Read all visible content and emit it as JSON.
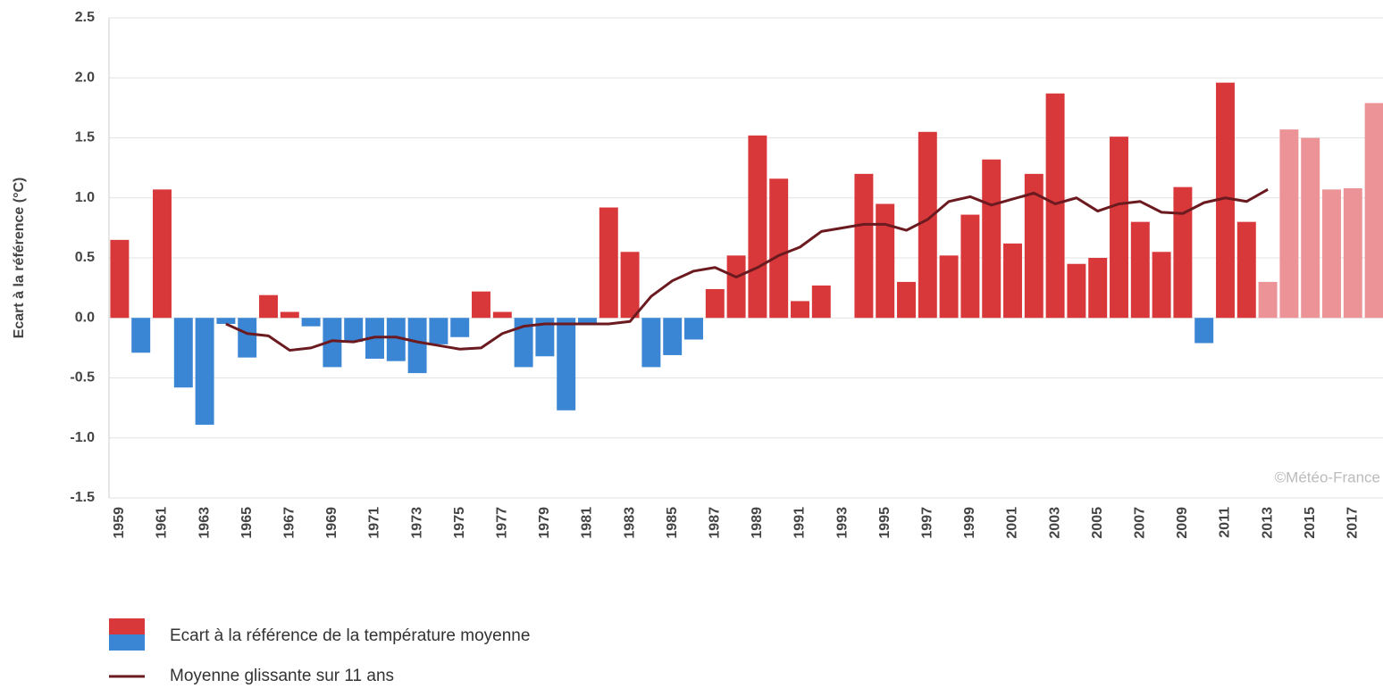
{
  "chart_data": {
    "type": "bar",
    "y_label": "Ecart à la référence (°C)",
    "annotation": "©Météo-France",
    "categories": [
      "1959",
      null,
      "1961",
      null,
      "1963",
      null,
      "1965",
      null,
      "1967",
      null,
      "1969",
      null,
      "1971",
      null,
      "1973",
      null,
      "1975",
      null,
      "1977",
      null,
      "1979",
      null,
      "1981",
      null,
      "1983",
      null,
      "1985",
      null,
      "1987",
      null,
      "1989",
      null,
      "1991",
      null,
      "1993",
      null,
      "1995",
      null,
      "1997",
      null,
      "1999",
      null,
      "2001",
      null,
      "2003",
      null,
      "2005",
      null,
      "2007",
      null,
      "2009",
      null,
      "2011",
      null,
      "2013",
      null,
      "2015",
      null,
      "2017",
      null
    ],
    "series": [
      {
        "name": "Ecart à la référence de la température moyenne",
        "legend_colors": [
          "#d9383a",
          "#3a85d4"
        ],
        "values": [
          0.65,
          -0.29,
          1.07,
          -0.58,
          -0.89,
          -0.05,
          -0.33,
          0.19,
          0.05,
          -0.07,
          -0.41,
          -0.2,
          -0.34,
          -0.36,
          -0.46,
          -0.22,
          -0.16,
          0.22,
          0.05,
          -0.41,
          -0.32,
          -0.77,
          -0.04,
          0.92,
          0.55,
          -0.41,
          -0.31,
          -0.18,
          0.24,
          0.52,
          1.52,
          1.16,
          0.14,
          0.27,
          0,
          1.2,
          0.95,
          0.3,
          1.55,
          0.52,
          0.86,
          1.32,
          0.62,
          1.2,
          1.87,
          0.45,
          0.5,
          1.51,
          0.8,
          0.55,
          1.09,
          -0.21,
          1.96,
          0.8,
          0.3,
          1.57,
          1.5,
          1.07,
          1.08,
          1.79
        ],
        "colors": [
          "#d9383a",
          "#3a85d4",
          "#d9383a",
          "#3a85d4",
          "#3a85d4",
          "#3a85d4",
          "#3a85d4",
          "#d9383a",
          "#d9383a",
          "#3a85d4",
          "#3a85d4",
          "#3a85d4",
          "#3a85d4",
          "#3a85d4",
          "#3a85d4",
          "#3a85d4",
          "#3a85d4",
          "#d9383a",
          "#d9383a",
          "#3a85d4",
          "#3a85d4",
          "#3a85d4",
          "#3a85d4",
          "#d9383a",
          "#d9383a",
          "#3a85d4",
          "#3a85d4",
          "#3a85d4",
          "#d9383a",
          "#d9383a",
          "#d9383a",
          "#d9383a",
          "#d9383a",
          "#d9383a",
          "#d9383a",
          "#d9383a",
          "#d9383a",
          "#d9383a",
          "#d9383a",
          "#d9383a",
          "#d9383a",
          "#d9383a",
          "#d9383a",
          "#d9383a",
          "#d9383a",
          "#d9383a",
          "#d9383a",
          "#d9383a",
          "#d9383a",
          "#d9383a",
          "#d9383a",
          "#3a85d4",
          "#d9383a",
          "#d9383a",
          "#ec9397",
          "#ec9397",
          "#ec9397",
          "#ec9397",
          "#ec9397",
          "#ec9397"
        ]
      },
      {
        "name": "Moyenne glissante sur 11 ans",
        "type": "line",
        "color": "#6b1a1f",
        "values": [
          null,
          null,
          null,
          null,
          null,
          -0.05,
          -0.13,
          -0.15,
          -0.27,
          -0.25,
          -0.19,
          -0.2,
          -0.16,
          -0.16,
          -0.2,
          -0.23,
          -0.26,
          -0.25,
          -0.13,
          -0.07,
          -0.05,
          -0.05,
          -0.05,
          -0.05,
          -0.03,
          0.18,
          0.31,
          0.39,
          0.42,
          0.34,
          0.42,
          0.52,
          0.59,
          0.72,
          0.75,
          0.78,
          0.78,
          0.73,
          0.82,
          0.97,
          1.01,
          0.94,
          0.99,
          1.04,
          0.95,
          1.0,
          0.89,
          0.95,
          0.97,
          0.88,
          0.87,
          0.96,
          1.0,
          0.97,
          1.07,
          null,
          null,
          null,
          null,
          null
        ]
      }
    ],
    "ylim": [
      -1.5,
      2.5
    ],
    "yticks": [
      -1.5,
      {
        "value": -1,
        "label": "-1.0"
      },
      -0.5,
      {
        "value": 0,
        "label": "0.0"
      },
      0.5,
      {
        "value": 1,
        "label": "1.0"
      },
      1.5,
      {
        "value": 2,
        "label": "2.0"
      },
      2.5
    ],
    "grid": true
  }
}
